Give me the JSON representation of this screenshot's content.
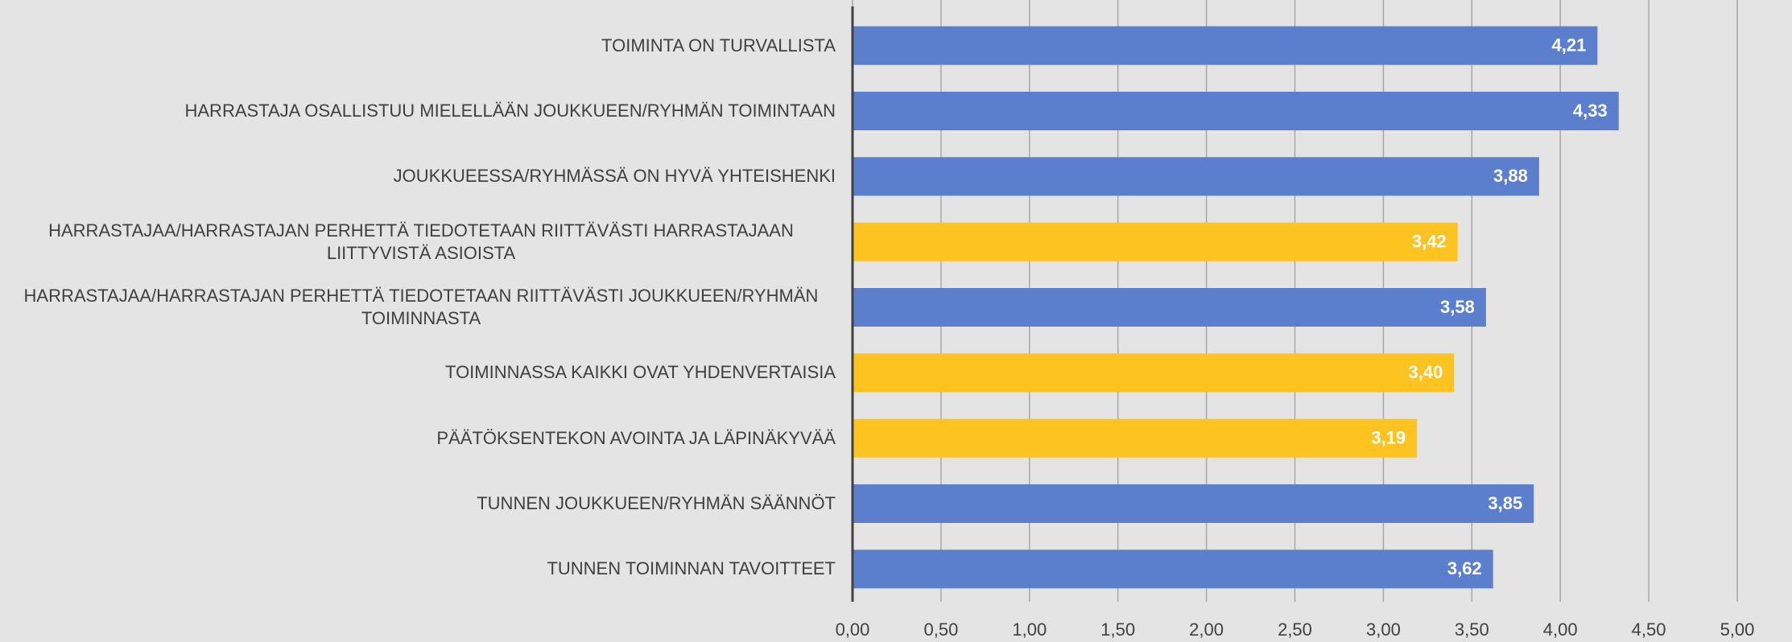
{
  "chart_data": {
    "type": "bar",
    "orientation": "horizontal",
    "categories": [
      "TOIMINTA ON TURVALLISTA",
      "HARRASTAJA OSALLISTUU MIELELLÄÄN JOUKKUEEN/RYHMÄN TOIMINTAAN",
      "JOUKKUEESSA/RYHMÄSSÄ ON HYVÄ YHTEISHENKI",
      "HARRASTAJAA/HARRASTAJAN PERHETTÄ TIEDOTETAAN RIITTÄVÄSTI HARRASTAJAAN LIITTYVISTÄ ASIOISTA",
      "HARRASTAJAA/HARRASTAJAN PERHETTÄ TIEDOTETAAN RIITTÄVÄSTI JOUKKUEEN/RYHMÄN TOIMINNASTA",
      "TOIMINNASSA KAIKKI OVAT YHDENVERTAISIA",
      "PÄÄTÖKSENTEKON AVOINTA JA LÄPINÄKYVÄÄ",
      "TUNNEN JOUKKUEEN/RYHMÄN SÄÄNNÖT",
      "TUNNEN TOIMINNAN TAVOITTEET"
    ],
    "values": [
      4.21,
      4.33,
      3.88,
      3.42,
      3.58,
      3.4,
      3.19,
      3.85,
      3.62
    ],
    "value_labels": [
      "4,21",
      "4,33",
      "3,88",
      "3,42",
      "3,58",
      "3,40",
      "3,19",
      "3,85",
      "3,62"
    ],
    "colors": [
      "#5b7fcd",
      "#5b7fcd",
      "#5b7fcd",
      "#fcc321",
      "#5b7fcd",
      "#fcc321",
      "#fcc321",
      "#5b7fcd",
      "#5b7fcd"
    ],
    "xlim": [
      0,
      5
    ],
    "xticks": [
      {
        "value": 0,
        "label": "0,00"
      },
      {
        "value": 0.5,
        "label": "0,50"
      },
      {
        "value": 1,
        "label": "1,00"
      },
      {
        "value": 1.5,
        "label": "1,50"
      },
      {
        "value": 2,
        "label": "2,00"
      },
      {
        "value": 2.5,
        "label": "2,50"
      },
      {
        "value": 3,
        "label": "3,00"
      },
      {
        "value": 3.5,
        "label": "3,50"
      },
      {
        "value": 4,
        "label": "4,00"
      },
      {
        "value": 4.5,
        "label": "4,50"
      },
      {
        "value": 5,
        "label": "5,00"
      }
    ],
    "grid": true
  }
}
